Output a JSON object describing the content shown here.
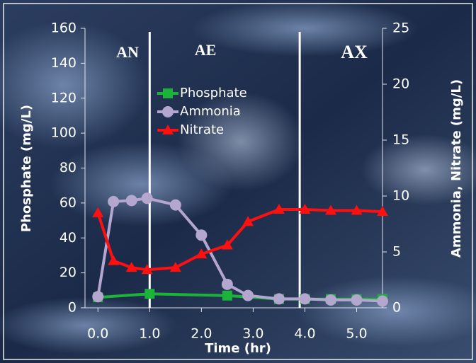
{
  "chart_data": {
    "type": "line",
    "xlabel": "Time (hr)",
    "ylabel": "Phosphate (mg/L)",
    "y2label": "Ammonia, Nitrate (mg/L)",
    "annotations": [
      "AN",
      "AE",
      "AX"
    ],
    "phase_boundaries": [
      1.0,
      3.9
    ],
    "xlim": [
      -0.25,
      5.5
    ],
    "xticks": [
      {
        "value": 0,
        "label": "0.0"
      },
      {
        "value": 1,
        "label": "1.0"
      },
      {
        "value": 2,
        "label": "2.0"
      },
      {
        "value": 3,
        "label": "3.0"
      },
      {
        "value": 4,
        "label": "4.0"
      },
      {
        "value": 5,
        "label": "5.0"
      }
    ],
    "ylim": [
      0,
      160
    ],
    "yticks": [
      0,
      20,
      40,
      60,
      80,
      100,
      120,
      140,
      160
    ],
    "y2lim": [
      0,
      25
    ],
    "y2ticks": [
      0,
      5,
      10,
      15,
      20,
      25
    ],
    "series": [
      {
        "name": "Phosphate",
        "color": "#1bb33a",
        "marker": "square",
        "axis": "y",
        "x": [
          0,
          1.0,
          2.5,
          3.5,
          4.0,
          4.5,
          5.0,
          5.5
        ],
        "values": [
          6,
          8,
          7,
          5,
          5,
          5,
          5,
          5
        ]
      },
      {
        "name": "Ammonia",
        "color": "#b3a6cf",
        "marker": "circle",
        "axis": "y2",
        "x": [
          0,
          0.3,
          0.65,
          0.95,
          1.5,
          2.0,
          2.5,
          2.9,
          3.5,
          4.0,
          4.5,
          5.0,
          5.5
        ],
        "values": [
          1.0,
          9.5,
          9.6,
          9.8,
          9.2,
          6.5,
          2.1,
          1.1,
          0.8,
          0.8,
          0.7,
          0.7,
          0.6
        ]
      },
      {
        "name": "Nitrate",
        "color": "#ff1010",
        "marker": "triangle",
        "axis": "y2",
        "x": [
          0,
          0.3,
          0.65,
          0.95,
          1.5,
          2.0,
          2.5,
          2.9,
          3.5,
          4.0,
          4.5,
          5.0,
          5.5
        ],
        "values": [
          8.5,
          4.2,
          3.6,
          3.4,
          3.6,
          4.8,
          5.6,
          7.7,
          8.8,
          8.8,
          8.7,
          8.7,
          8.6
        ]
      }
    ]
  }
}
